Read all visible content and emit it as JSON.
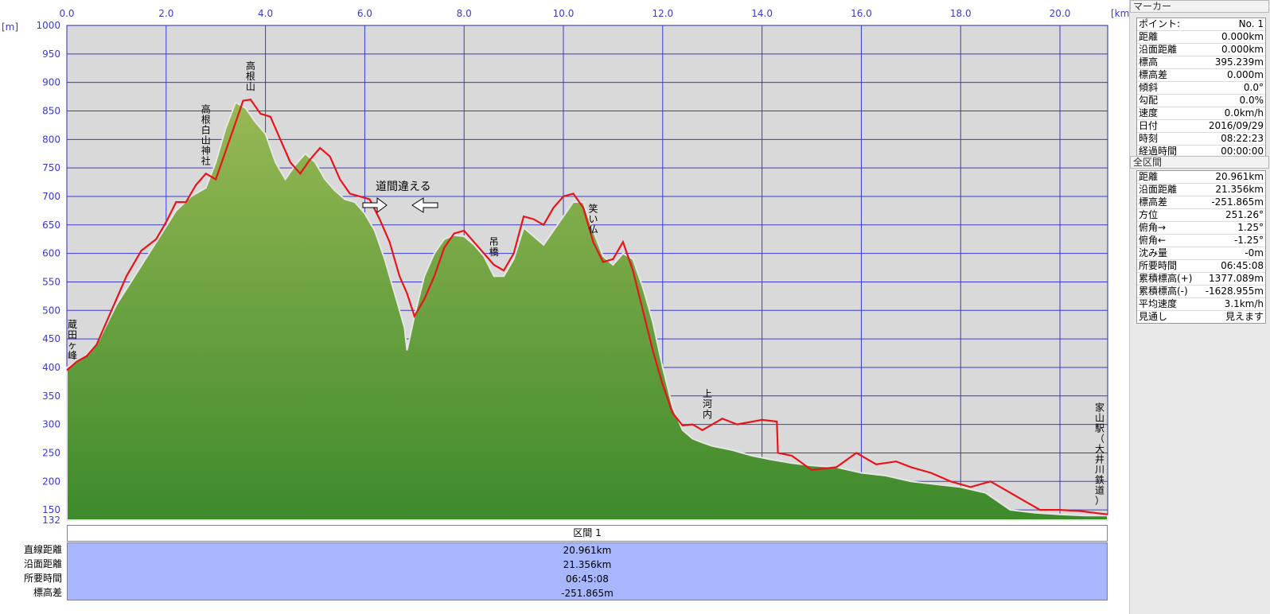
{
  "chart_data": {
    "type": "area",
    "x_unit": "[km]",
    "y_unit": "[m]",
    "xlim": [
      0,
      20.961
    ],
    "ylim": [
      132,
      1000
    ],
    "x_ticks": [
      0,
      2,
      4,
      6,
      8,
      10,
      12,
      14,
      16,
      18,
      20
    ],
    "x_tick_labels": [
      "0.0",
      "2.0",
      "4.0",
      "6.0",
      "8.0",
      "10.0",
      "12.0",
      "14.0",
      "16.0",
      "18.0",
      "20.0"
    ],
    "y_ticks": [
      132,
      150,
      200,
      250,
      300,
      350,
      400,
      450,
      500,
      550,
      600,
      650,
      700,
      750,
      800,
      850,
      900,
      950,
      1000
    ],
    "grid": true,
    "series": [
      {
        "kind": "terrain",
        "x": [
          0,
          0.3,
          0.6,
          1.0,
          1.4,
          1.8,
          2.2,
          2.5,
          2.8,
          3.0,
          3.2,
          3.4,
          3.6,
          3.8,
          4.0,
          4.2,
          4.4,
          4.6,
          4.8,
          5.0,
          5.2,
          5.4,
          5.6,
          5.8,
          6.0,
          6.2,
          6.4,
          6.6,
          6.8,
          6.85,
          7.0,
          7.2,
          7.4,
          7.6,
          7.8,
          8.0,
          8.2,
          8.4,
          8.6,
          8.8,
          9.0,
          9.2,
          9.4,
          9.6,
          9.8,
          10.0,
          10.2,
          10.4,
          10.6,
          10.8,
          11.0,
          11.2,
          11.4,
          11.6,
          11.8,
          12.0,
          12.2,
          12.4,
          12.6,
          12.8,
          13.0,
          13.4,
          13.8,
          14.2,
          14.6,
          15.0,
          15.5,
          16.0,
          16.5,
          17.0,
          17.5,
          18.0,
          18.5,
          19.0,
          19.5,
          20.0,
          20.5,
          20.961
        ],
        "y": [
          400,
          415,
          440,
          510,
          565,
          620,
          675,
          700,
          715,
          760,
          820,
          865,
          855,
          830,
          810,
          760,
          730,
          755,
          775,
          760,
          730,
          710,
          695,
          690,
          670,
          640,
          590,
          530,
          470,
          430,
          490,
          560,
          600,
          625,
          632,
          630,
          615,
          595,
          560,
          560,
          590,
          645,
          630,
          615,
          640,
          665,
          690,
          690,
          640,
          595,
          580,
          600,
          590,
          540,
          480,
          400,
          330,
          290,
          275,
          268,
          262,
          255,
          245,
          238,
          232,
          228,
          225,
          215,
          210,
          200,
          195,
          190,
          180,
          150,
          145,
          142,
          140,
          140
        ]
      },
      {
        "kind": "track",
        "x": [
          0,
          0.2,
          0.4,
          0.6,
          0.8,
          1.0,
          1.2,
          1.5,
          1.8,
          2.0,
          2.2,
          2.4,
          2.6,
          2.8,
          3.0,
          3.2,
          3.4,
          3.55,
          3.7,
          3.9,
          4.1,
          4.3,
          4.5,
          4.7,
          4.9,
          5.1,
          5.3,
          5.5,
          5.7,
          5.9,
          6.1,
          6.3,
          6.5,
          6.7,
          6.85,
          7.0,
          7.2,
          7.4,
          7.6,
          7.8,
          8.0,
          8.2,
          8.4,
          8.6,
          8.8,
          9.0,
          9.2,
          9.4,
          9.6,
          9.8,
          10.0,
          10.2,
          10.4,
          10.6,
          10.8,
          11.0,
          11.2,
          11.4,
          11.6,
          11.8,
          12.0,
          12.2,
          12.4,
          12.6,
          12.8,
          13.0,
          13.2,
          13.5,
          14.0,
          14.3,
          14.32,
          14.6,
          15.0,
          15.5,
          15.9,
          16.3,
          16.7,
          17.0,
          17.4,
          17.8,
          18.2,
          18.6,
          19.0,
          19.3,
          19.6,
          20.0,
          20.4,
          20.961
        ],
        "y": [
          395,
          410,
          420,
          440,
          480,
          520,
          560,
          605,
          625,
          655,
          690,
          690,
          720,
          740,
          730,
          780,
          830,
          868,
          870,
          845,
          840,
          800,
          760,
          740,
          765,
          785,
          770,
          730,
          705,
          700,
          695,
          660,
          620,
          560,
          530,
          490,
          520,
          560,
          610,
          635,
          640,
          620,
          600,
          580,
          570,
          600,
          665,
          660,
          650,
          680,
          700,
          705,
          680,
          620,
          585,
          590,
          620,
          570,
          500,
          430,
          370,
          320,
          298,
          300,
          290,
          300,
          310,
          300,
          308,
          305,
          250,
          245,
          220,
          225,
          250,
          230,
          235,
          225,
          215,
          200,
          190,
          200,
          180,
          165,
          150,
          150,
          148,
          142
        ]
      }
    ],
    "waypoints": [
      {
        "x": 0.05,
        "label": "蔵田ヶ峰"
      },
      {
        "x": 2.8,
        "label": "高根白山神社"
      },
      {
        "x": 3.7,
        "label": "高根山"
      },
      {
        "x": 8.6,
        "label": "吊橋"
      },
      {
        "x": 10.6,
        "label": "笑い仏"
      },
      {
        "x": 12.9,
        "label": "上河内"
      },
      {
        "x": 20.8,
        "label": "家山駅（大井川鉄道）"
      }
    ],
    "annotation": "道間違える"
  },
  "section": {
    "header": "区間 1",
    "rows": [
      {
        "label": "直線距離",
        "value": "20.961km"
      },
      {
        "label": "沿面距離",
        "value": "21.356km"
      },
      {
        "label": "所要時間",
        "value": "06:45:08"
      },
      {
        "label": "標高差",
        "value": "-251.865m"
      }
    ]
  },
  "panel": {
    "marker_title": "マーカー",
    "marker_rows": [
      {
        "label": "ポイント:",
        "value": "No. 1"
      },
      {
        "label": "距離",
        "value": "0.000km"
      },
      {
        "label": "沿面距離",
        "value": "0.000km"
      },
      {
        "label": "標高",
        "value": "395.239m"
      },
      {
        "label": "標高差",
        "value": "0.000m"
      },
      {
        "label": "傾斜",
        "value": "0.0°"
      },
      {
        "label": "勾配",
        "value": "0.0%"
      },
      {
        "label": "速度",
        "value": "0.0km/h"
      },
      {
        "label": "日付",
        "value": "2016/09/29"
      },
      {
        "label": "時刻",
        "value": "08:22:23"
      },
      {
        "label": "経過時間",
        "value": "00:00:00"
      }
    ],
    "range_title": "全区間",
    "range_rows": [
      {
        "label": "距離",
        "value": "20.961km"
      },
      {
        "label": "沿面距離",
        "value": "21.356km"
      },
      {
        "label": "標高差",
        "value": "-251.865m"
      },
      {
        "label": "方位",
        "value": "251.26°"
      },
      {
        "label": "俯角→",
        "value": "1.25°"
      },
      {
        "label": "俯角←",
        "value": "-1.25°"
      },
      {
        "label": "沈み量",
        "value": "-0m"
      },
      {
        "label": "所要時間",
        "value": "06:45:08"
      },
      {
        "label": "累積標高(+)",
        "value": "1377.089m"
      },
      {
        "label": "累積標高(-)",
        "value": "-1628.955m"
      },
      {
        "label": "平均速度",
        "value": "3.1km/h"
      },
      {
        "label": "見通し",
        "value": "見えます"
      }
    ]
  },
  "colors": {
    "plot_bg": "#d9d9d9",
    "grid": "#3a3acc",
    "terrain_top": "#8db04c",
    "terrain_bottom": "#3f8a2c",
    "track": "#e8141c",
    "section_bg": "#a8b6fb"
  }
}
